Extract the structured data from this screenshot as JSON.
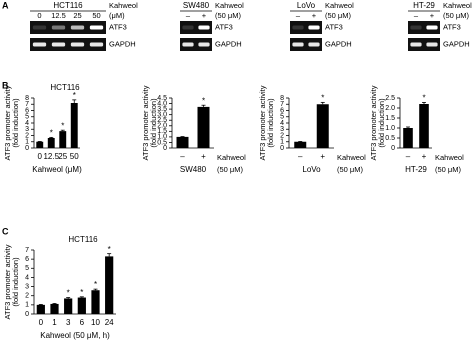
{
  "panel_labels": [
    "A",
    "B",
    "C"
  ],
  "gels": [
    {
      "cell_line": "HCT116",
      "treatment": "Kahweol",
      "unit": "(μM)",
      "lanes": [
        "0",
        "12.5",
        "25",
        "50"
      ],
      "rows": [
        "ATF3",
        "GAPDH"
      ]
    },
    {
      "cell_line": "SW480",
      "treatment": "Kahweol",
      "unit": "(50 μM)",
      "lanes": [
        "–",
        "+"
      ],
      "rows": [
        "ATF3",
        "GAPDH"
      ]
    },
    {
      "cell_line": "LoVo",
      "treatment": "Kahweol",
      "unit": "(50 μM)",
      "lanes": [
        "–",
        "+"
      ],
      "rows": [
        "ATF3",
        "GAPDH"
      ]
    },
    {
      "cell_line": "HT-29",
      "treatment": "Kahweol",
      "unit": "(50 μM)",
      "lanes": [
        "–",
        "+"
      ],
      "rows": [
        "ATF3",
        "GAPDH"
      ]
    }
  ],
  "chart_data": [
    {
      "type": "bar",
      "title": "HCT116",
      "ylabel": [
        "ATF3 promoter activity",
        "(fold induction)"
      ],
      "xlabel": "Kahweol (μM)",
      "categories": [
        "0",
        "12.5",
        "25",
        "50"
      ],
      "values": [
        1.0,
        1.6,
        2.7,
        7.2
      ],
      "errors": [
        0.05,
        0.1,
        0.15,
        0.5
      ],
      "annotations": [
        null,
        "*",
        "*",
        "*"
      ],
      "color": "#000000",
      "ylim": [
        0,
        8
      ],
      "yticks": [
        0,
        1,
        2,
        3,
        4,
        5,
        6,
        7,
        8
      ]
    },
    {
      "type": "bar",
      "ylabel": [
        "ATF3 promoter activity",
        "(fold induction)"
      ],
      "xlabel": "SW480",
      "treatment_label": [
        "Kahweol",
        "(50 μM)"
      ],
      "categories": [
        "–",
        "+"
      ],
      "values": [
        1.0,
        3.7
      ],
      "errors": [
        0.03,
        0.15
      ],
      "annotations": [
        null,
        "*"
      ],
      "color": "#000000",
      "ylim": [
        0,
        4.5
      ],
      "yticks": [
        0,
        0.5,
        {
          "value": 1,
          "label": "1.0"
        },
        1.5,
        {
          "value": 2,
          "label": "2.0"
        },
        2.5,
        {
          "value": 3,
          "label": "3.0"
        },
        3.5,
        {
          "value": 4,
          "label": "4.0"
        },
        4.5
      ]
    },
    {
      "type": "bar",
      "ylabel": [
        "ATF3 promoter activity",
        "(fold induction)"
      ],
      "xlabel": "LoVo",
      "treatment_label": [
        "Kahweol",
        "(50 μM)"
      ],
      "categories": [
        "–",
        "+"
      ],
      "values": [
        1.0,
        7.0
      ],
      "errors": [
        0.05,
        0.3
      ],
      "annotations": [
        null,
        "*"
      ],
      "color": "#000000",
      "ylim": [
        0,
        8
      ],
      "yticks": [
        0,
        1,
        2,
        3,
        4,
        5,
        6,
        7,
        8
      ]
    },
    {
      "type": "bar",
      "ylabel": [
        "ATF3 promoter activity",
        "(fold induction)"
      ],
      "xlabel": "HT-29",
      "treatment_label": [
        "Kahweol",
        "(50 μM)"
      ],
      "categories": [
        "–",
        "+"
      ],
      "values": [
        1.0,
        2.2
      ],
      "errors": [
        0.05,
        0.08
      ],
      "annotations": [
        null,
        "*"
      ],
      "color": "#000000",
      "ylim": [
        0,
        2.5
      ],
      "yticks": [
        0,
        0.5,
        {
          "value": 1,
          "label": "1.0"
        },
        1.5,
        {
          "value": 2,
          "label": "2.0"
        },
        2.5
      ]
    },
    {
      "type": "bar",
      "title": "HCT116",
      "ylabel": [
        "ATF3 promoter activity",
        "(fold induction)"
      ],
      "xlabel": "Kahweol (50 μM, h)",
      "categories": [
        "0",
        "1",
        "3",
        "6",
        "10",
        "24"
      ],
      "values": [
        1.0,
        1.1,
        1.7,
        1.8,
        2.6,
        6.3
      ],
      "errors": [
        0.05,
        0.05,
        0.1,
        0.08,
        0.12,
        0.3
      ],
      "annotations": [
        null,
        null,
        "*",
        "*",
        "*",
        "*"
      ],
      "color": "#000000",
      "ylim": [
        0,
        7
      ],
      "yticks": [
        0,
        1,
        2,
        3,
        4,
        5,
        6,
        7
      ]
    }
  ]
}
